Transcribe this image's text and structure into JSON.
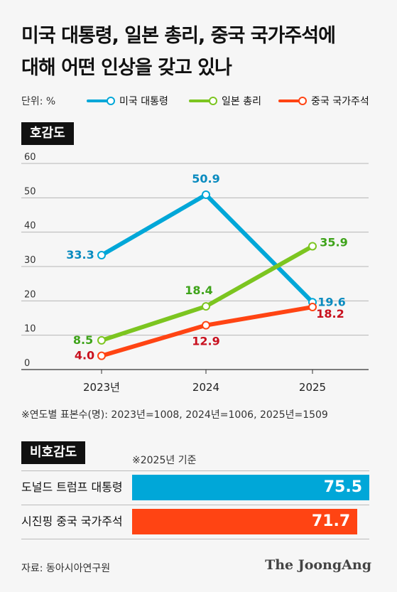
{
  "title_line1": "미국 대통령, 일본 총리, 중국 국가주석에",
  "title_line2": "대해 어떤 인상을 갖고 있나",
  "unit_label": "단위: %",
  "legend": [
    {
      "name": "미국 대통령",
      "color": "#00a7d8"
    },
    {
      "name": "일본 총리",
      "color": "#7cc520"
    },
    {
      "name": "중국 국가주석",
      "color": "#ff4413"
    }
  ],
  "favorability_label": "호감도",
  "chart_data": {
    "type": "line",
    "x": [
      "2023년",
      "2024",
      "2025"
    ],
    "ylim": [
      0,
      60
    ],
    "yticks": [
      "0",
      "10",
      "20",
      "30",
      "40",
      "50",
      "60"
    ],
    "series": [
      {
        "name": "미국 대통령",
        "color": "#00a7d8",
        "label_color": "#0a8bbf",
        "start_index": 0,
        "values": [
          33.3,
          50.9,
          19.6
        ],
        "labels": [
          "33.3",
          "50.9",
          "19.6"
        ]
      },
      {
        "name": "일본 총리",
        "color": "#7cc520",
        "label_color": "#3ea31a",
        "start_index": 0,
        "values": [
          8.5,
          18.4,
          35.9
        ],
        "labels": [
          "8.5",
          "18.4",
          "35.9"
        ]
      },
      {
        "name": "중국 국가주석",
        "color": "#ff4413",
        "label_color": "#c8101e",
        "start_index": 0,
        "values": [
          4.0,
          12.9,
          18.2
        ],
        "labels": [
          "4.0",
          "12.9",
          "18.2"
        ]
      }
    ],
    "grid": true,
    "legend": "top"
  },
  "sample_note": "※연도별 표본수(명): 2023년=1008, 2024년=1006, 2025년=1509",
  "unfavorability_label": "비호감도",
  "bar_note": "※2025년 기준",
  "unfavorability_data": {
    "type": "bar",
    "max": 75.5,
    "items": [
      {
        "label": "도널드 트럼프 대통령",
        "value": 75.5,
        "value_label": "75.5",
        "color": "#00a7d8"
      },
      {
        "label": "시진핑 중국 국가주석",
        "value": 71.7,
        "value_label": "71.7",
        "color": "#ff4413"
      }
    ]
  },
  "source": "자료: 동아시아연구원",
  "logo": "The JoongAng"
}
